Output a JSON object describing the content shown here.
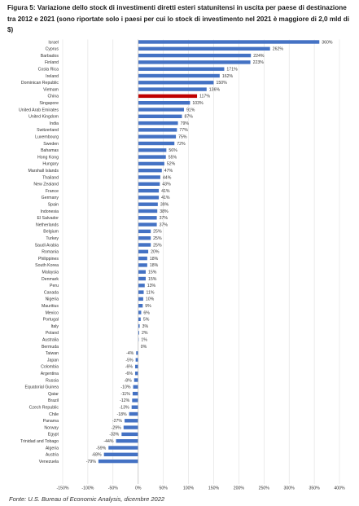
{
  "title": "Figura 5: Variazione dello stock di investimenti diretti esteri statunitensi in uscita per paese di destinazione tra 2012 e 2021 (sono riportate solo i paesi per cui lo stock di investimento nel 2021 è maggiore di 2,0 mld di $)",
  "source": "Fonte: U.S. Bureau of Economic Analysis, dicembre 2022",
  "colors": {
    "bar": "#4472c4",
    "highlight": "#c00000",
    "grid": "#d9d9d9",
    "label": "#333333"
  },
  "chart_data": {
    "type": "bar",
    "orientation": "horizontal",
    "highlight": "China",
    "xlim": [
      -150,
      400
    ],
    "xticks": [
      -150,
      -100,
      -50,
      0,
      50,
      100,
      150,
      200,
      250,
      300,
      350,
      400
    ],
    "xtick_labels": [
      "-150%",
      "-100%",
      "-50%",
      "0%",
      "50%",
      "100%",
      "150%",
      "200%",
      "250%",
      "300%",
      "350%",
      "400%"
    ],
    "grid": "vertical",
    "categories": [
      "Israel",
      "Cyprus",
      "Barbados",
      "Finland",
      "Costa Rica",
      "Ireland",
      "Dominican Republic",
      "Vietnam",
      "China",
      "Singapore",
      "United Arab Emirates",
      "United Kingdom",
      "India",
      "Switzerland",
      "Luxembourg",
      "Sweden",
      "Bahamas",
      "Hong Kong",
      "Hungary",
      "Marshall Islands",
      "Thailand",
      "New Zealand",
      "France",
      "Germany",
      "Spain",
      "Indonesia",
      "El Salvador",
      "Netherlands",
      "Belgium",
      "Turkey",
      "Saudi Arabia",
      "Romania",
      "Philippines",
      "South Korea",
      "Malaysia",
      "Denmark",
      "Peru",
      "Canada",
      "Nigeria",
      "Mauritius",
      "Mexico",
      "Portugal",
      "Italy",
      "Poland",
      "Australia",
      "Bermuda",
      "Taiwan",
      "Japan",
      "Colombia",
      "Argentina",
      "Russia",
      "Equatorial Guinea",
      "Qatar",
      "Brazil",
      "Czech Republic",
      "Chile",
      "Panama",
      "Norway",
      "Egypt",
      "Trinidad and Tobago",
      "Algeria",
      "Austria",
      "Venezuela"
    ],
    "values": [
      360,
      262,
      224,
      223,
      171,
      162,
      150,
      136,
      117,
      103,
      91,
      87,
      79,
      77,
      75,
      72,
      56,
      55,
      52,
      47,
      44,
      43,
      41,
      41,
      39,
      38,
      37,
      37,
      25,
      25,
      25,
      20,
      18,
      18,
      15,
      15,
      13,
      11,
      10,
      9,
      6,
      5,
      3,
      2,
      1,
      0,
      -4,
      -5,
      -6,
      -6,
      -8,
      -10,
      -11,
      -12,
      -13,
      -18,
      -27,
      -29,
      -33,
      -44,
      -59,
      -68,
      -79
    ],
    "labels": [
      "360%",
      "262%",
      "224%",
      "223%",
      "171%",
      "162%",
      "150%",
      "136%",
      "117%",
      "103%",
      "91%",
      "87%",
      "79%",
      "77%",
      "75%",
      "72%",
      "56%",
      "55%",
      "52%",
      "47%",
      "44%",
      "43%",
      "41%",
      "41%",
      "39%",
      "38%",
      "37%",
      "37%",
      "25%",
      "25%",
      "25%",
      "20%",
      "18%",
      "18%",
      "15%",
      "15%",
      "13%",
      "11%",
      "10%",
      "9%",
      "6%",
      "5%",
      "3%",
      "2%",
      "1%",
      "0%",
      "-4%",
      "-5%",
      "-6%",
      "-6%",
      "-8%",
      "-10%",
      "-11%",
      "-12%",
      "-13%",
      "-18%",
      "-27%",
      "-29%",
      "-33%",
      "-44%",
      "-59%",
      "-68%",
      "-79%"
    ]
  }
}
